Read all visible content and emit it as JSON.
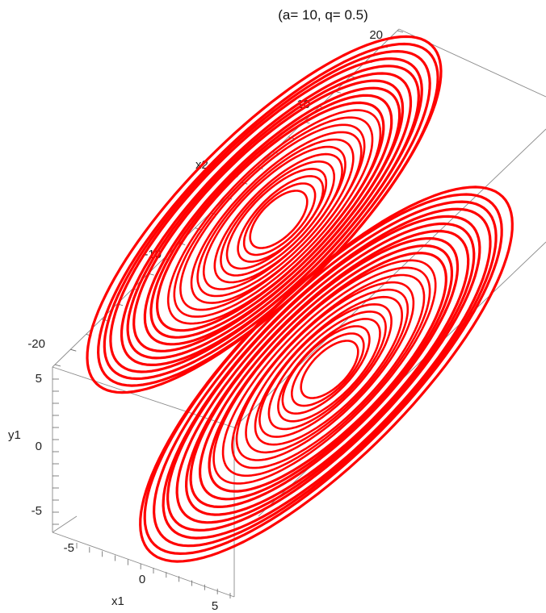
{
  "chart_data": {
    "type": "line",
    "subtype": "3d-parametric",
    "title": "(a= 10, q= 0.5)",
    "series": [
      {
        "name": "",
        "color": "#ff0000"
      }
    ],
    "axes": {
      "x1": {
        "label": "x1",
        "range": [
          -6,
          6
        ],
        "ticks": [
          "-5",
          "0",
          "5"
        ]
      },
      "y1": {
        "label": "y1",
        "range": [
          -7,
          6
        ],
        "ticks": [
          "5",
          "0",
          "-5"
        ]
      },
      "x2": {
        "label": "x2",
        "range": [
          -24,
          22
        ],
        "ticks": [
          "20",
          "10",
          "0",
          "-10",
          "-20"
        ]
      }
    },
    "box": true,
    "grid": false
  }
}
